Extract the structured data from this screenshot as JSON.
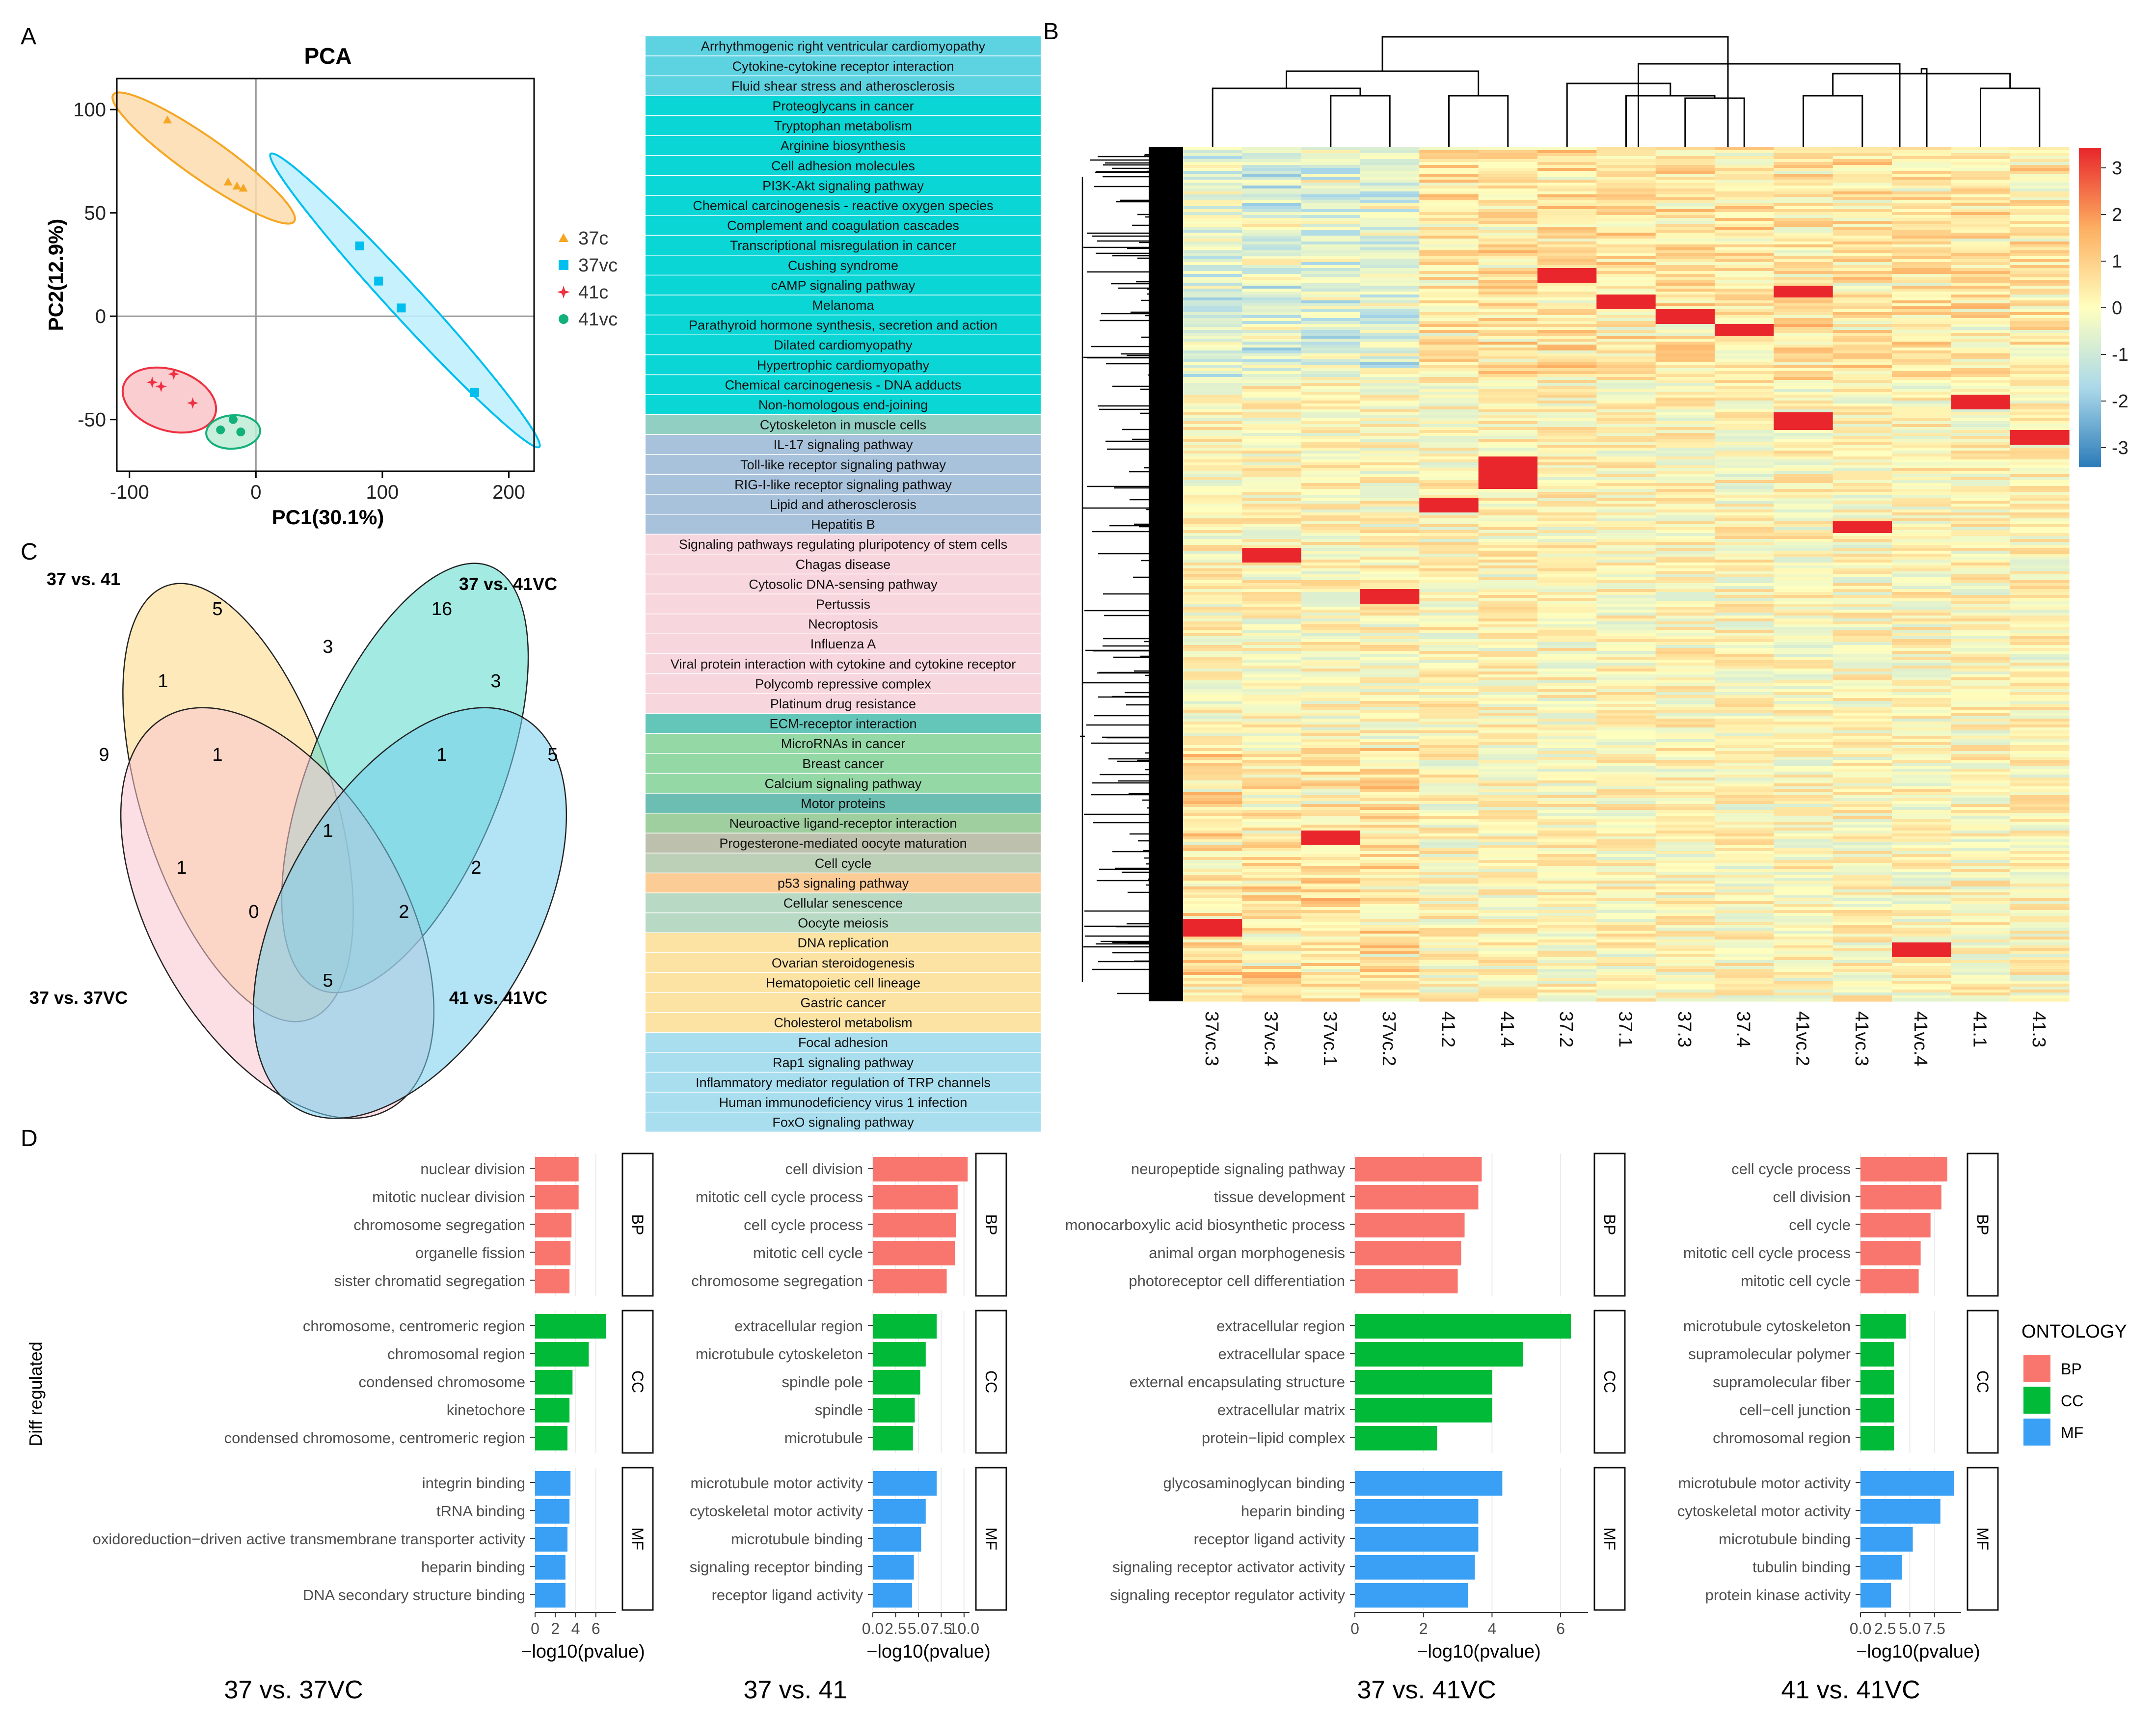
{
  "panel_labels": [
    "A",
    "B",
    "C",
    "D"
  ],
  "chart_data": [
    {
      "panel": "A",
      "type": "scatter",
      "title": "PCA",
      "xlabel": "PC1(30.1%)",
      "ylabel": "PC2(12.9%)",
      "xlim": [
        -110,
        220
      ],
      "ylim": [
        -75,
        115
      ],
      "xticks": [
        -100,
        0,
        100,
        200
      ],
      "yticks": [
        100,
        50,
        0,
        -50
      ],
      "series": [
        {
          "name": "37c",
          "color": "#F5A623",
          "marker": "triangle",
          "points": [
            [
              -70,
              95
            ],
            [
              -22,
              65
            ],
            [
              -15,
              63
            ],
            [
              -10,
              62
            ]
          ]
        },
        {
          "name": "37vc",
          "color": "#00BFEF",
          "marker": "square",
          "points": [
            [
              82,
              34
            ],
            [
              97,
              17
            ],
            [
              115,
              4
            ],
            [
              173,
              -37
            ]
          ]
        },
        {
          "name": "41c",
          "color": "#EE3042",
          "marker": "star",
          "points": [
            [
              -82,
              -32
            ],
            [
              -75,
              -34
            ],
            [
              -65,
              -28
            ],
            [
              -50,
              -42
            ]
          ]
        },
        {
          "name": "41vc",
          "color": "#12B07A",
          "marker": "circle",
          "points": [
            [
              -28,
              -55
            ],
            [
              -18,
              -50
            ],
            [
              -12,
              -56
            ]
          ]
        }
      ],
      "ellipses": [
        {
          "series": "37c",
          "fill": "#FBDCAE",
          "stroke": "#F5A623"
        },
        {
          "series": "37vc",
          "fill": "#BDEFFB",
          "stroke": "#00BFEF"
        },
        {
          "series": "41c",
          "fill": "#F9C4C8",
          "stroke": "#EE3042"
        },
        {
          "series": "41vc",
          "fill": "#BEEBD6",
          "stroke": "#12B07A"
        }
      ]
    },
    {
      "panel": "B",
      "type": "heatmap",
      "samples": [
        "37vc.3",
        "37vc.4",
        "37vc.1",
        "37vc.2",
        "41.2",
        "41.4",
        "37.2",
        "37.1",
        "37.3",
        "37.4",
        "41vc.2",
        "41vc.3",
        "41vc.4",
        "41.1",
        "41.3"
      ],
      "colorbar_ticks": [
        3,
        2,
        1,
        0,
        -1,
        -2,
        -3
      ],
      "color_scale": [
        "#2B7BB9",
        "#ABD9E9",
        "#FFFFBF",
        "#FDAE61",
        "#E8262B"
      ]
    },
    {
      "panel": "C",
      "type": "venn",
      "sets": [
        "37 vs. 41",
        "37 vs. 41VC",
        "37 vs. 37VC",
        "41 vs. 41VC"
      ],
      "colors": [
        "#FBD77F",
        "#57D9CC",
        "#F9C5D0",
        "#74CDEC"
      ],
      "region_counts": [
        "5",
        "16",
        "3",
        "1",
        "3",
        "9",
        "1",
        "1",
        "5",
        "1",
        "1",
        "2",
        "0",
        "2",
        "5"
      ]
    },
    {
      "panel": "D",
      "type": "bar",
      "orientation": "horizontal",
      "ylabel": "Diff regulated",
      "xlabel": "−log10(pvalue)",
      "legend": {
        "title": "ONTOLOGY",
        "entries": [
          {
            "name": "BP",
            "color": "#F8766D"
          },
          {
            "name": "CC",
            "color": "#00BA38"
          },
          {
            "name": "MF",
            "color": "#3AA0F5"
          }
        ]
      },
      "comparisons": [
        {
          "title": "37 vs. 37VC",
          "xmax": 8,
          "xtick_values": [
            0,
            2,
            4,
            6
          ],
          "xtick_labels": [
            "0",
            "2",
            "4",
            "6"
          ],
          "groups": [
            {
              "name": "BP",
              "terms": [
                "nuclear division",
                "mitotic nuclear division",
                "chromosome segregation",
                "organelle fission",
                "sister chromatid segregation"
              ],
              "values": [
                4.3,
                4.3,
                3.6,
                3.5,
                3.4
              ]
            },
            {
              "name": "CC",
              "terms": [
                "chromosome, centromeric region",
                "chromosomal region",
                "condensed chromosome",
                "kinetochore",
                "condensed chromosome, centromeric region"
              ],
              "values": [
                7.0,
                5.3,
                3.7,
                3.4,
                3.2
              ]
            },
            {
              "name": "MF",
              "terms": [
                "integrin binding",
                "tRNA binding",
                "oxidoreduction−driven active transmembrane transporter activity",
                "heparin binding",
                "DNA secondary structure binding"
              ],
              "values": [
                3.5,
                3.4,
                3.2,
                3.0,
                3.0
              ]
            }
          ]
        },
        {
          "title": "37 vs. 41",
          "xmax": 10.6,
          "xtick_values": [
            0,
            2.5,
            5,
            7.5,
            10
          ],
          "xtick_labels": [
            "0.0",
            "2.5",
            "5.0",
            "7.5",
            "10.0"
          ],
          "groups": [
            {
              "name": "BP",
              "terms": [
                "cell division",
                "mitotic cell cycle process",
                "cell cycle process",
                "mitotic cell cycle",
                "chromosome segregation"
              ],
              "values": [
                10.4,
                9.3,
                9.1,
                9.0,
                8.1
              ]
            },
            {
              "name": "CC",
              "terms": [
                "extracellular region",
                "microtubule cytoskeleton",
                "spindle pole",
                "spindle",
                "microtubule"
              ],
              "values": [
                7.0,
                5.8,
                5.2,
                4.6,
                4.4
              ]
            },
            {
              "name": "MF",
              "terms": [
                "microtubule motor activity",
                "cytoskeletal motor activity",
                "microtubule binding",
                "signaling receptor binding",
                "receptor ligand activity"
              ],
              "values": [
                7.0,
                5.8,
                5.3,
                4.5,
                4.3
              ]
            }
          ]
        },
        {
          "title": "37 vs. 41VC",
          "xmax": 6.8,
          "xtick_values": [
            0,
            2,
            4,
            6
          ],
          "xtick_labels": [
            "0",
            "2",
            "4",
            "6"
          ],
          "groups": [
            {
              "name": "BP",
              "terms": [
                "neuropeptide signaling pathway",
                "tissue development",
                "monocarboxylic acid biosynthetic process",
                "animal organ morphogenesis",
                "photoreceptor cell differentiation"
              ],
              "values": [
                3.7,
                3.6,
                3.2,
                3.1,
                3.0
              ]
            },
            {
              "name": "CC",
              "terms": [
                "extracellular region",
                "extracellular space",
                "external encapsulating structure",
                "extracellular matrix",
                "protein−lipid complex"
              ],
              "values": [
                6.3,
                4.9,
                4.0,
                4.0,
                2.4
              ]
            },
            {
              "name": "MF",
              "terms": [
                "glycosaminoglycan binding",
                "heparin binding",
                "receptor ligand activity",
                "signaling receptor activator activity",
                "signaling receptor regulator activity"
              ],
              "values": [
                4.3,
                3.6,
                3.6,
                3.5,
                3.3
              ]
            }
          ]
        },
        {
          "title": "41 vs. 41VC",
          "xmax": 10.2,
          "xtick_values": [
            0,
            2.5,
            5,
            7.5
          ],
          "xtick_labels": [
            "0.0",
            "2.5",
            "5.0",
            "7.5"
          ],
          "groups": [
            {
              "name": "BP",
              "terms": [
                "cell cycle process",
                "cell division",
                "cell cycle",
                "mitotic cell cycle process",
                "mitotic cell cycle"
              ],
              "values": [
                8.8,
                8.2,
                7.1,
                6.1,
                5.9
              ]
            },
            {
              "name": "CC",
              "terms": [
                "microtubule cytoskeleton",
                "supramolecular polymer",
                "supramolecular fiber",
                "cell−cell junction",
                "chromosomal region"
              ],
              "values": [
                4.6,
                3.4,
                3.4,
                3.4,
                3.4
              ]
            },
            {
              "name": "MF",
              "terms": [
                "microtubule motor activity",
                "cytoskeletal motor activity",
                "microtubule binding",
                "tubulin binding",
                "protein kinase activity"
              ],
              "values": [
                9.5,
                8.1,
                5.3,
                4.2,
                3.1
              ]
            }
          ]
        }
      ]
    }
  ],
  "pathways": {
    "palette": {
      "a": "#5DD3E2",
      "b": "#0AD6D6",
      "c": "#92CFC3",
      "d": "#A9C2DB",
      "e": "#F8D6DD",
      "f": "#63C6B9",
      "g": "#94D8A6",
      "h": "#6CBEB3",
      "i": "#9FCF9E",
      "j": "#BEC0AE",
      "k": "#BCD0B8",
      "l": "#FBCC95",
      "m": "#B8D9C3",
      "n": "#FCE3A3",
      "o": "#A8DEEE"
    },
    "items": [
      {
        "label": "Arrhythmogenic right ventricular cardiomyopathy",
        "c": "a"
      },
      {
        "label": "Cytokine-cytokine receptor interaction",
        "c": "a"
      },
      {
        "label": "Fluid shear stress and atherosclerosis",
        "c": "a"
      },
      {
        "label": "Proteoglycans in cancer",
        "c": "b"
      },
      {
        "label": "Tryptophan metabolism",
        "c": "b"
      },
      {
        "label": "Arginine biosynthesis",
        "c": "b"
      },
      {
        "label": "Cell adhesion molecules",
        "c": "b"
      },
      {
        "label": "PI3K-Akt signaling pathway",
        "c": "b"
      },
      {
        "label": "Chemical carcinogenesis - reactive oxygen species",
        "c": "b"
      },
      {
        "label": "Complement and coagulation cascades",
        "c": "b"
      },
      {
        "label": "Transcriptional misregulation in cancer",
        "c": "b"
      },
      {
        "label": "Cushing syndrome",
        "c": "b"
      },
      {
        "label": "cAMP signaling pathway",
        "c": "b"
      },
      {
        "label": "Melanoma",
        "c": "b"
      },
      {
        "label": "Parathyroid hormone synthesis, secretion and action",
        "c": "b"
      },
      {
        "label": "Dilated cardiomyopathy",
        "c": "b"
      },
      {
        "label": "Hypertrophic cardiomyopathy",
        "c": "b"
      },
      {
        "label": "Chemical carcinogenesis - DNA adducts",
        "c": "b"
      },
      {
        "label": "Non-homologous end-joining",
        "c": "b"
      },
      {
        "label": "Cytoskeleton in muscle cells",
        "c": "c"
      },
      {
        "label": "IL-17 signaling pathway",
        "c": "d"
      },
      {
        "label": "Toll-like receptor signaling pathway",
        "c": "d"
      },
      {
        "label": "RIG-I-like receptor signaling pathway",
        "c": "d"
      },
      {
        "label": "Lipid and atherosclerosis",
        "c": "d"
      },
      {
        "label": "Hepatitis B",
        "c": "d"
      },
      {
        "label": "Signaling pathways regulating pluripotency of stem cells",
        "c": "e"
      },
      {
        "label": "Chagas disease",
        "c": "e"
      },
      {
        "label": "Cytosolic DNA-sensing pathway",
        "c": "e"
      },
      {
        "label": "Pertussis",
        "c": "e"
      },
      {
        "label": "Necroptosis",
        "c": "e"
      },
      {
        "label": "Influenza A",
        "c": "e"
      },
      {
        "label": "Viral protein interaction with cytokine and cytokine receptor",
        "c": "e"
      },
      {
        "label": "Polycomb repressive complex",
        "c": "e"
      },
      {
        "label": "Platinum drug resistance",
        "c": "e"
      },
      {
        "label": "ECM-receptor interaction",
        "c": "f"
      },
      {
        "label": "MicroRNAs in cancer",
        "c": "g"
      },
      {
        "label": "Breast cancer",
        "c": "g"
      },
      {
        "label": "Calcium signaling pathway",
        "c": "g"
      },
      {
        "label": "Motor proteins",
        "c": "h"
      },
      {
        "label": "Neuroactive ligand-receptor interaction",
        "c": "i"
      },
      {
        "label": "Progesterone-mediated oocyte maturation",
        "c": "j"
      },
      {
        "label": "Cell cycle",
        "c": "k"
      },
      {
        "label": "p53 signaling pathway",
        "c": "l"
      },
      {
        "label": "Cellular senescence",
        "c": "m"
      },
      {
        "label": "Oocyte meiosis",
        "c": "m"
      },
      {
        "label": "DNA replication",
        "c": "n"
      },
      {
        "label": "Ovarian steroidogenesis",
        "c": "n"
      },
      {
        "label": "Hematopoietic cell lineage",
        "c": "n"
      },
      {
        "label": "Gastric cancer",
        "c": "n"
      },
      {
        "label": "Cholesterol metabolism",
        "c": "n"
      },
      {
        "label": "Focal adhesion",
        "c": "o"
      },
      {
        "label": "Rap1 signaling pathway",
        "c": "o"
      },
      {
        "label": "Inflammatory mediator regulation of TRP channels",
        "c": "o"
      },
      {
        "label": "Human immunodeficiency virus 1 infection",
        "c": "o"
      },
      {
        "label": "FoxO signaling pathway",
        "c": "o"
      }
    ]
  }
}
